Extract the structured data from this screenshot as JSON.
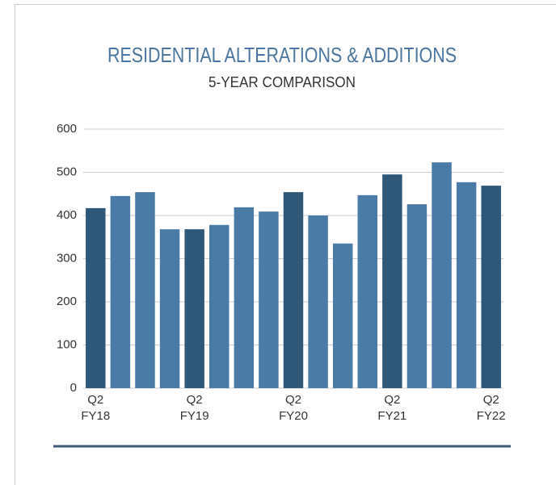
{
  "chart_data": {
    "type": "bar",
    "title": "RESIDENTIAL ALTERATIONS & ADDITIONS",
    "subtitle": "5-YEAR COMPARISON",
    "categories": [
      "Q2\nFY18",
      null,
      null,
      null,
      "Q2\nFY19",
      null,
      null,
      null,
      "Q2\nFY20",
      null,
      null,
      null,
      "Q2\nFY21",
      null,
      null,
      null,
      "Q2\nFY22"
    ],
    "values": [
      417,
      445,
      454,
      368,
      368,
      378,
      419,
      409,
      454,
      400,
      335,
      447,
      495,
      426,
      523,
      477,
      469
    ],
    "colors": [
      "#2e5778",
      "#4a7aa6",
      "#4a7aa6",
      "#4a7aa6",
      "#2e5778",
      "#4a7aa6",
      "#4a7aa6",
      "#4a7aa6",
      "#2e5778",
      "#4a7aa6",
      "#4a7aa6",
      "#4a7aa6",
      "#2e5778",
      "#4a7aa6",
      "#4a7aa6",
      "#4a7aa6",
      "#2e5778"
    ],
    "ylim": [
      0,
      600
    ],
    "yticks": [
      0,
      100,
      200,
      300,
      400,
      500,
      600
    ],
    "grid": true
  }
}
